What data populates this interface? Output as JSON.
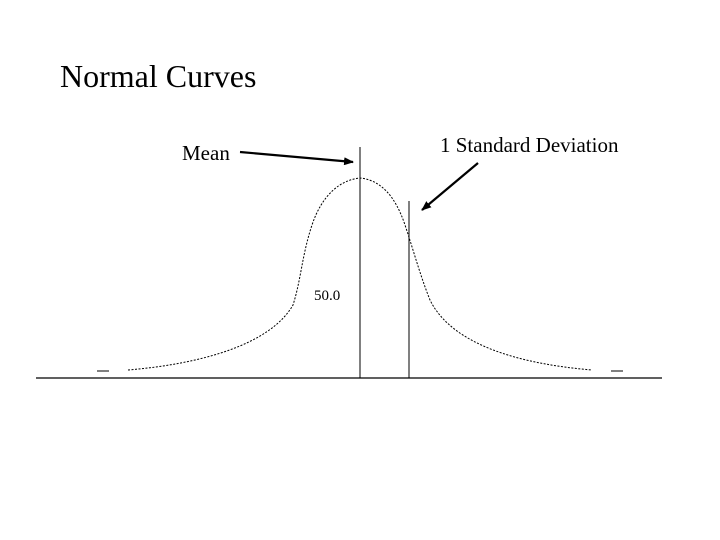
{
  "slide": {
    "title": "Normal Curves"
  },
  "labels": {
    "mean": "Mean",
    "std_dev": "1 Standard Deviation",
    "value": "50.0"
  },
  "colors": {
    "background": "#ffffff",
    "ink": "#000000"
  }
}
